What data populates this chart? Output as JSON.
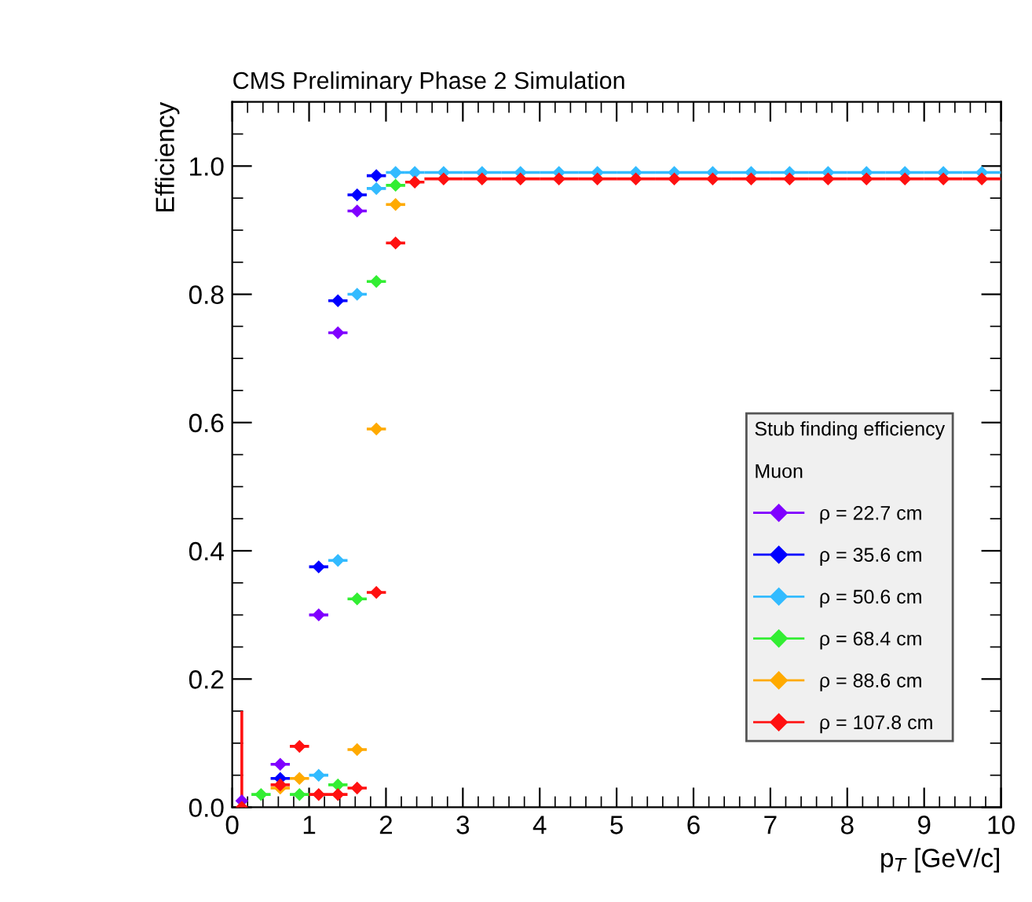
{
  "chart_data": {
    "type": "scatter",
    "title": "CMS Preliminary Phase 2 Simulation",
    "xlabel": "p$_{T}$ [GeV/c]",
    "ylabel": "Efficiency",
    "legend_title": "Stub finding efficiency\n\nMuon",
    "x": [
      0.125,
      0.375,
      0.625,
      0.875,
      1.125,
      1.375,
      1.625,
      1.875,
      2.125,
      2.375,
      2.75,
      3.25,
      3.75,
      4.25,
      4.75,
      5.25,
      5.75,
      6.25,
      6.75,
      7.25,
      7.75,
      8.25,
      8.75,
      9.25,
      9.75
    ],
    "series": [
      {
        "name": "ρ = 22.7 cm",
        "color": "#8000ff",
        "values": [
          0.01,
          null,
          0.067,
          null,
          0.3,
          0.74,
          0.93,
          null,
          null,
          null,
          null,
          null,
          null,
          null,
          null,
          null,
          null,
          null,
          null,
          null,
          null,
          null,
          null,
          null,
          null
        ],
        "xerrors": [
          null,
          null,
          0.125,
          null,
          0.125,
          0.125,
          0.125,
          null,
          null,
          null,
          null,
          null,
          null,
          null,
          null,
          null,
          null,
          null,
          null,
          null,
          null,
          null,
          null,
          null,
          null
        ]
      },
      {
        "name": "ρ = 35.6 cm",
        "color": "#0000ff",
        "values": [
          null,
          null,
          0.045,
          null,
          0.375,
          0.79,
          0.955,
          0.985,
          null,
          null,
          null,
          null,
          null,
          null,
          null,
          null,
          null,
          null,
          null,
          null,
          null,
          null,
          null,
          null,
          null
        ],
        "xerrors": [
          null,
          null,
          0.125,
          null,
          0.125,
          0.125,
          0.125,
          0.125,
          null,
          null,
          null,
          null,
          null,
          null,
          null,
          null,
          null,
          null,
          null,
          null,
          null,
          null,
          null,
          null,
          null
        ]
      },
      {
        "name": "ρ = 50.6 cm",
        "color": "#33bbff",
        "values": [
          null,
          null,
          null,
          null,
          0.05,
          0.385,
          0.8,
          0.965,
          0.99,
          0.99,
          0.99,
          0.99,
          0.99,
          0.99,
          0.99,
          0.99,
          0.99,
          0.99,
          0.99,
          0.99,
          0.99,
          0.99,
          0.99,
          0.99,
          0.99
        ],
        "xerrors": [
          null,
          null,
          null,
          null,
          0.125,
          0.125,
          0.125,
          0.125,
          0.125,
          0.125,
          0.25,
          0.25,
          0.25,
          0.25,
          0.25,
          0.25,
          0.25,
          0.25,
          0.25,
          0.25,
          0.25,
          0.25,
          0.25,
          0.25,
          0.25
        ]
      },
      {
        "name": "ρ = 68.4 cm",
        "color": "#33ee33",
        "values": [
          null,
          0.02,
          null,
          0.02,
          null,
          0.035,
          0.325,
          0.82,
          0.97,
          null,
          null,
          null,
          null,
          null,
          null,
          null,
          null,
          null,
          null,
          null,
          null,
          null,
          null,
          null,
          null
        ],
        "xerrors": [
          null,
          0.125,
          null,
          0.125,
          null,
          0.125,
          0.125,
          0.125,
          0.125,
          null,
          null,
          null,
          null,
          null,
          null,
          null,
          null,
          null,
          null,
          null,
          null,
          null,
          null,
          null,
          null
        ]
      },
      {
        "name": "ρ = 88.6 cm",
        "color": "#ffaa00",
        "values": [
          null,
          null,
          0.03,
          0.045,
          null,
          null,
          0.09,
          0.59,
          0.94,
          null,
          null,
          null,
          null,
          null,
          null,
          null,
          null,
          null,
          null,
          null,
          null,
          null,
          null,
          null,
          null
        ],
        "xerrors": [
          null,
          null,
          0.125,
          0.125,
          null,
          null,
          0.125,
          0.125,
          0.125,
          null,
          null,
          null,
          null,
          null,
          null,
          null,
          null,
          null,
          null,
          null,
          null,
          null,
          null,
          null,
          null
        ]
      },
      {
        "name": "ρ = 107.8 cm",
        "color": "#ff1111",
        "values": [
          0.0,
          null,
          0.035,
          0.095,
          0.02,
          0.02,
          0.03,
          0.335,
          0.88,
          0.975,
          0.98,
          0.98,
          0.98,
          0.98,
          0.98,
          0.98,
          0.98,
          0.98,
          0.98,
          0.98,
          0.98,
          0.98,
          0.98,
          0.98,
          0.98
        ],
        "xerrors": [
          null,
          null,
          0.125,
          0.125,
          0.125,
          0.125,
          0.125,
          0.125,
          0.125,
          0.125,
          0.25,
          0.25,
          0.25,
          0.25,
          0.25,
          0.25,
          0.25,
          0.25,
          0.25,
          0.25,
          0.25,
          0.25,
          0.25,
          0.25,
          0.25
        ],
        "errors": [
          [
            0.0,
            0.15
          ],
          null,
          null,
          null,
          null,
          null,
          null,
          null,
          null,
          null,
          null,
          null,
          null,
          null,
          null,
          null,
          null,
          null,
          null,
          null,
          null,
          null,
          null,
          null,
          null
        ]
      }
    ],
    "xlim": [
      0,
      10
    ],
    "xticks": [
      0,
      1,
      2,
      3,
      4,
      5,
      6,
      7,
      8,
      9,
      10
    ],
    "ylim": [
      0,
      1.1
    ],
    "yticks": [
      {
        "value": 0,
        "label": "0.0"
      },
      {
        "value": 0.2,
        "label": "0.2"
      },
      {
        "value": 0.4,
        "label": "0.4"
      },
      {
        "value": 0.6,
        "label": "0.6"
      },
      {
        "value": 0.8,
        "label": "0.8"
      },
      {
        "value": 1.0,
        "label": "1.0"
      }
    ],
    "marker": "diamond",
    "legend": "right",
    "grid": false
  }
}
